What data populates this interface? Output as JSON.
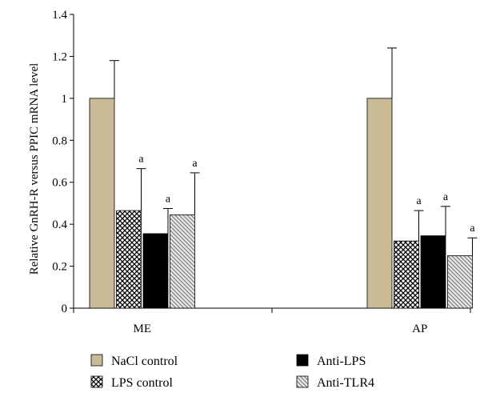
{
  "chart_data": {
    "type": "bar",
    "categories": [
      "ME",
      "AP"
    ],
    "ylabel": "Relative GnRH-R versus PPIC mRNA level",
    "xlabel": "",
    "ylim": [
      0,
      1.4
    ],
    "yticks": [
      "0",
      "0.2",
      "0.4",
      "0.6",
      "0.8",
      "1",
      "1.2",
      "1.4"
    ],
    "grid": false,
    "legend_position": "bottom",
    "series": [
      {
        "name": "NaCl control",
        "values": [
          1.0,
          1.0
        ],
        "errors": [
          0.18,
          0.24
        ],
        "labels": [
          "",
          ""
        ],
        "color": "#c8bb96",
        "pattern": "solid"
      },
      {
        "name": "LPS control",
        "values": [
          0.465,
          0.32
        ],
        "errors": [
          0.2,
          0.145
        ],
        "labels": [
          "a",
          "a"
        ],
        "color": "#000000",
        "pattern": "crosshatch"
      },
      {
        "name": "Anti-LPS",
        "values": [
          0.355,
          0.345
        ],
        "errors": [
          0.12,
          0.14
        ],
        "labels": [
          "a",
          "a"
        ],
        "color": "#000000",
        "pattern": "solid"
      },
      {
        "name": "Anti-TLR4",
        "values": [
          0.445,
          0.25
        ],
        "errors": [
          0.2,
          0.085
        ],
        "labels": [
          "a",
          "a"
        ],
        "color": "#808080",
        "pattern": "diagonal"
      }
    ]
  }
}
